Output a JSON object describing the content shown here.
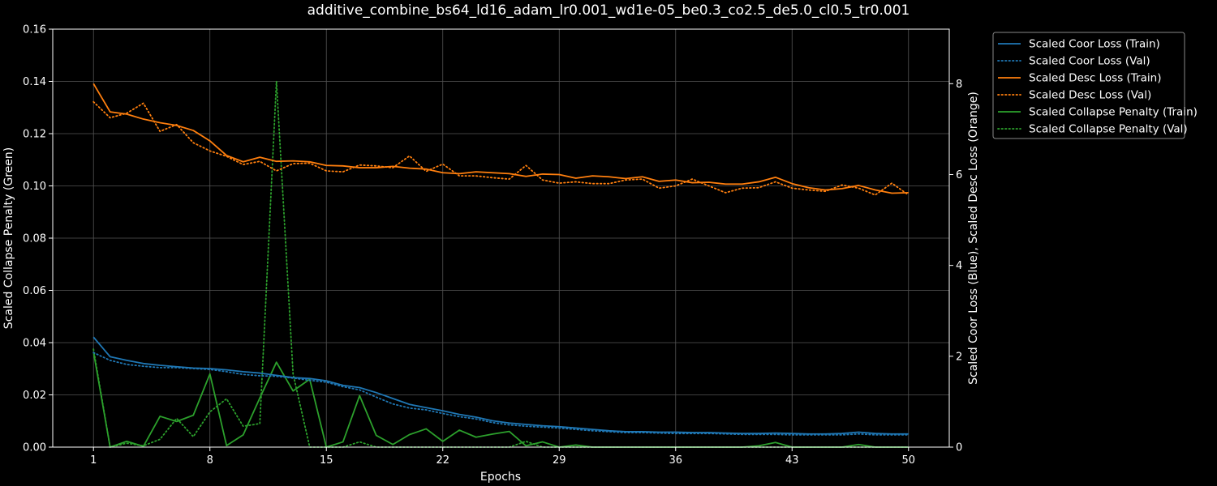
{
  "chart_data": {
    "type": "line",
    "title": "additive_combine_bs64_ld16_adam_lr0.001_wd1e-05_be0.3_co2.5_de5.0_cl0.5_tr0.001",
    "xlabel": "Epochs",
    "ylabel_left": "Scaled Collapse Penalty (Green)",
    "ylabel_right": "Scaled Coor Loss (Blue), Scaled Desc Loss (Orange)",
    "xlim": [
      -1.45,
      52.45
    ],
    "ylim_left": [
      0,
      0.16
    ],
    "ylim_right": [
      0,
      9.2
    ],
    "x_ticks": [
      1,
      8,
      15,
      22,
      29,
      36,
      43,
      50
    ],
    "y_ticks_left": [
      "0.00",
      "0.02",
      "0.04",
      "0.06",
      "0.08",
      "0.10",
      "0.12",
      "0.14",
      "0.16"
    ],
    "y_ticks_right": [
      "0",
      "2",
      "4",
      "6",
      "8"
    ],
    "grid": true,
    "legend_position": "outside-top-right",
    "colors": {
      "blue": "#1f77b4",
      "orange": "#ff7f0e",
      "green": "#2ca02c",
      "grid": "#555555",
      "axis": "#ffffff"
    },
    "series": [
      {
        "name": "Scaled Coor Loss (Train)",
        "axis": "right",
        "style": "solid",
        "color": "#1f77b4",
        "values": [
          2.42,
          1.99,
          1.91,
          1.84,
          1.8,
          1.77,
          1.74,
          1.73,
          1.7,
          1.66,
          1.63,
          1.58,
          1.53,
          1.51,
          1.46,
          1.36,
          1.31,
          1.2,
          1.07,
          0.94,
          0.87,
          0.8,
          0.72,
          0.66,
          0.58,
          0.53,
          0.5,
          0.47,
          0.45,
          0.42,
          0.39,
          0.36,
          0.34,
          0.34,
          0.33,
          0.33,
          0.32,
          0.32,
          0.31,
          0.3,
          0.3,
          0.31,
          0.3,
          0.29,
          0.29,
          0.3,
          0.33,
          0.3,
          0.29,
          0.29
        ]
      },
      {
        "name": "Scaled Coor Loss (Val)",
        "axis": "right",
        "style": "dotted",
        "color": "#1f77b4",
        "values": [
          2.08,
          1.91,
          1.82,
          1.78,
          1.75,
          1.75,
          1.73,
          1.71,
          1.66,
          1.6,
          1.57,
          1.56,
          1.52,
          1.47,
          1.43,
          1.33,
          1.26,
          1.1,
          0.95,
          0.86,
          0.82,
          0.74,
          0.67,
          0.62,
          0.54,
          0.49,
          0.46,
          0.44,
          0.42,
          0.39,
          0.36,
          0.34,
          0.32,
          0.32,
          0.31,
          0.3,
          0.3,
          0.3,
          0.29,
          0.28,
          0.28,
          0.28,
          0.27,
          0.27,
          0.27,
          0.27,
          0.29,
          0.27,
          0.27,
          0.27
        ]
      },
      {
        "name": "Scaled Desc Loss (Train)",
        "axis": "right",
        "style": "solid",
        "color": "#ff7f0e",
        "values": [
          8.0,
          7.38,
          7.33,
          7.22,
          7.14,
          7.08,
          6.97,
          6.74,
          6.42,
          6.28,
          6.38,
          6.29,
          6.3,
          6.28,
          6.2,
          6.19,
          6.15,
          6.15,
          6.18,
          6.14,
          6.12,
          6.04,
          6.02,
          6.06,
          6.04,
          6.02,
          5.96,
          6.01,
          6.0,
          5.92,
          5.97,
          5.95,
          5.91,
          5.95,
          5.85,
          5.88,
          5.82,
          5.83,
          5.79,
          5.79,
          5.84,
          5.94,
          5.8,
          5.71,
          5.66,
          5.69,
          5.76,
          5.66,
          5.59,
          5.6
        ]
      },
      {
        "name": "Scaled Desc Loss (Val)",
        "axis": "right",
        "style": "dotted",
        "color": "#ff7f0e",
        "values": [
          7.6,
          7.25,
          7.35,
          7.57,
          6.95,
          7.1,
          6.7,
          6.52,
          6.4,
          6.22,
          6.29,
          6.08,
          6.24,
          6.25,
          6.08,
          6.06,
          6.21,
          6.19,
          6.15,
          6.41,
          6.07,
          6.23,
          5.97,
          5.97,
          5.93,
          5.9,
          6.2,
          5.88,
          5.81,
          5.84,
          5.8,
          5.8,
          5.88,
          5.9,
          5.7,
          5.75,
          5.9,
          5.75,
          5.6,
          5.7,
          5.71,
          5.84,
          5.7,
          5.66,
          5.63,
          5.77,
          5.7,
          5.55,
          5.81,
          5.55
        ]
      },
      {
        "name": "Scaled Collapse Penalty (Train)",
        "axis": "left",
        "style": "solid",
        "color": "#2ca02c",
        "values": [
          0.0365,
          0.0,
          0.0022,
          0.0003,
          0.0118,
          0.0098,
          0.0122,
          0.028,
          0.0006,
          0.0047,
          0.0188,
          0.0325,
          0.0215,
          0.026,
          0.0,
          0.002,
          0.0197,
          0.0045,
          0.001,
          0.0048,
          0.007,
          0.0022,
          0.0065,
          0.0038,
          0.005,
          0.006,
          0.0005,
          0.002,
          0.0,
          0.0008,
          0.0,
          0.0,
          0.0,
          0.0,
          0.0,
          0.0,
          0.0,
          0.0,
          0.0,
          0.0,
          0.0005,
          0.0018,
          0.0,
          0.0,
          0.0,
          0.0,
          0.001,
          0.0,
          0.0,
          0.0
        ]
      },
      {
        "name": "Scaled Collapse Penalty (Val)",
        "axis": "left",
        "style": "dotted",
        "color": "#2ca02c",
        "values": [
          0.0375,
          0.0,
          0.0015,
          0.0005,
          0.003,
          0.011,
          0.004,
          0.0135,
          0.0185,
          0.008,
          0.009,
          0.14,
          0.028,
          0.0,
          0.0,
          0.0,
          0.002,
          0.0,
          0.0,
          0.0,
          0.0,
          0.0,
          0.0,
          0.0,
          0.0,
          0.0,
          0.0022,
          0.0,
          0.0,
          0.0,
          0.0,
          0.0,
          0.0,
          0.0,
          0.0,
          0.0,
          0.0,
          0.0,
          0.0,
          0.0,
          0.0,
          0.0,
          0.0,
          0.0,
          0.0,
          0.0,
          0.0,
          0.0,
          0.0,
          0.0
        ]
      }
    ]
  }
}
